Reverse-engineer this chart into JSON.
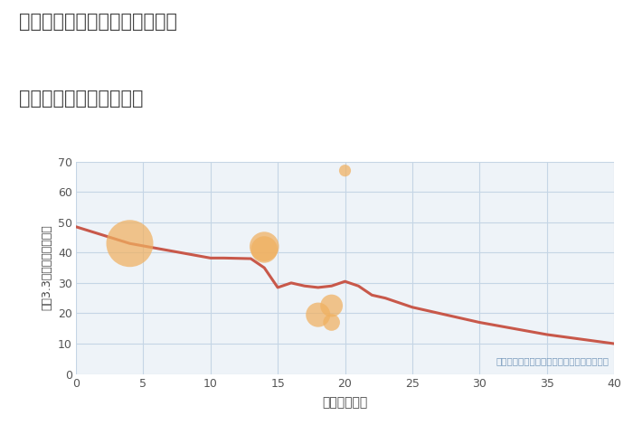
{
  "title_line1": "兵庫県姫路市夢前町古知之庄の",
  "title_line2": "築年数別中古戸建て価格",
  "xlabel": "築年数（年）",
  "ylabel": "坪（3.3㎡）単価（万円）",
  "background_color": "#ffffff",
  "plot_bg_color": "#eef3f8",
  "grid_color": "#c5d5e5",
  "line_color": "#c8584a",
  "scatter_color": "#f0b060",
  "scatter_alpha": 0.72,
  "annotation_color": "#7799bb",
  "annotation_text": "円の大きさは、取引のあった物件面積を示す",
  "xlim": [
    0,
    40
  ],
  "ylim": [
    0,
    70
  ],
  "xticks": [
    0,
    5,
    10,
    15,
    20,
    25,
    30,
    35,
    40
  ],
  "yticks": [
    0,
    10,
    20,
    30,
    40,
    50,
    60,
    70
  ],
  "line_x": [
    0,
    4,
    10,
    11,
    13,
    14,
    15,
    16,
    17,
    18,
    19,
    20,
    21,
    22,
    23,
    25,
    30,
    35,
    40
  ],
  "line_y": [
    48.5,
    43,
    38.2,
    38.2,
    38,
    35,
    28.5,
    30,
    29,
    28.5,
    29,
    30.5,
    29,
    26,
    25,
    22,
    17,
    13,
    10
  ],
  "scatter_x": [
    4,
    14,
    14,
    18,
    19,
    20,
    19
  ],
  "scatter_y": [
    43,
    42,
    41,
    19.5,
    22.5,
    67,
    17
  ],
  "scatter_sizes": [
    1400,
    550,
    450,
    380,
    320,
    90,
    180
  ]
}
